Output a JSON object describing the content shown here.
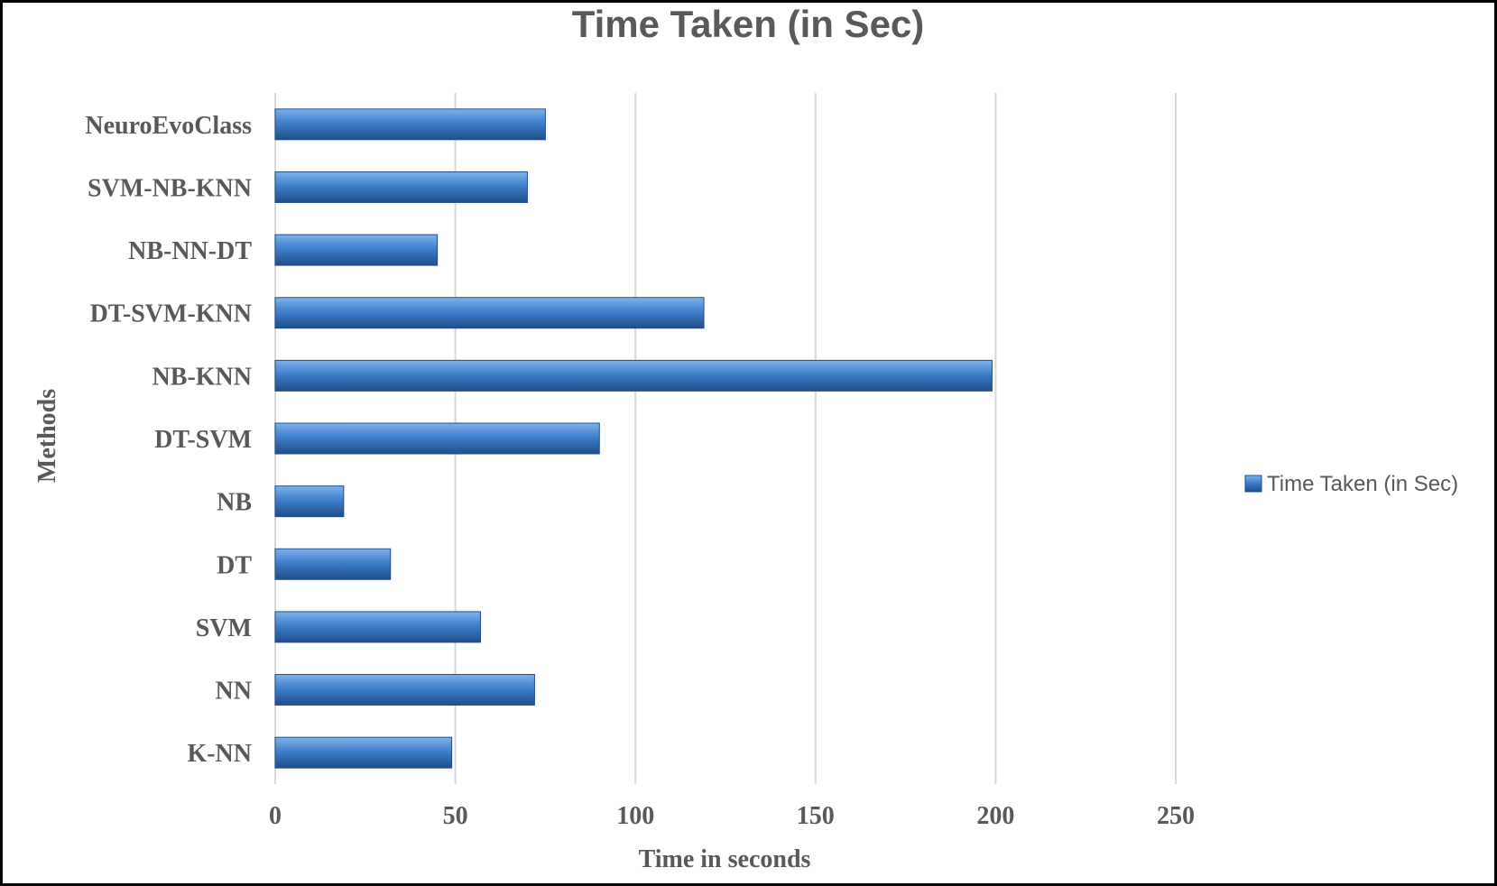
{
  "chart_data": {
    "type": "bar",
    "orientation": "horizontal",
    "title": "Time Taken (in Sec)",
    "xlabel": "Time in seconds",
    "ylabel": "Methods",
    "categories": [
      "NeuroEvoClass",
      "SVM-NB-KNN",
      "NB-NN-DT",
      "DT-SVM-KNN",
      "NB-KNN",
      "DT-SVM",
      "NB",
      "DT",
      "SVM",
      "NN",
      "K-NN"
    ],
    "series": [
      {
        "name": "Time Taken (in Sec)",
        "values": [
          75,
          70,
          45,
          119,
          199,
          90,
          19,
          32,
          57,
          72,
          49
        ],
        "color": "#3a78c3"
      }
    ],
    "xlim": [
      0,
      250
    ],
    "xticks": [
      0,
      50,
      100,
      150,
      200,
      250
    ],
    "grid": "vertical",
    "legend": "right"
  }
}
